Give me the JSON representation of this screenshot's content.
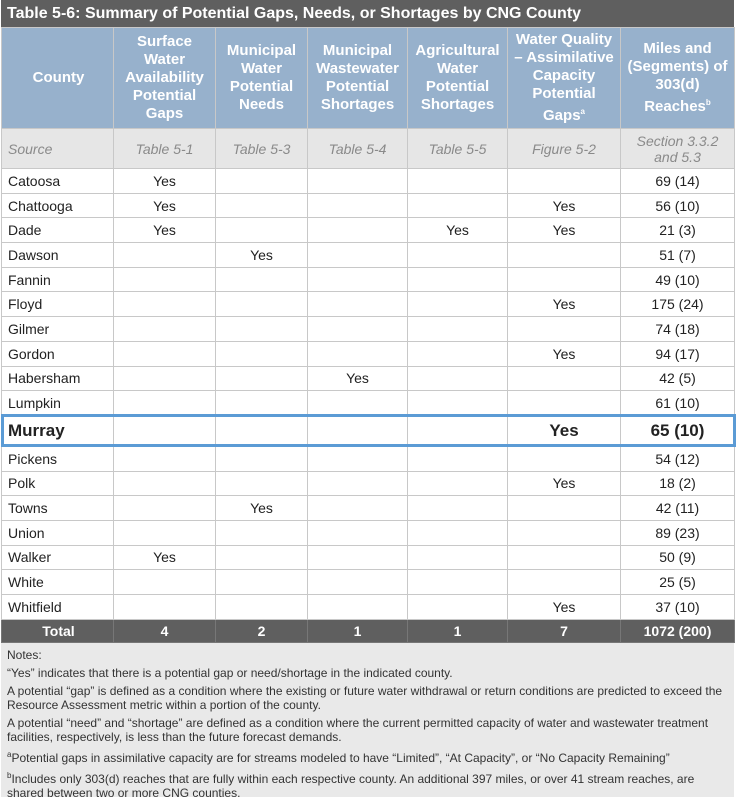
{
  "table": {
    "title": "Table 5-6:  Summary of Potential Gaps, Needs, or Shortages by CNG County",
    "columns": [
      {
        "key": "county",
        "text": "County"
      },
      {
        "key": "surface",
        "text": "Surface Water Availability Potential Gaps"
      },
      {
        "key": "municipal_water",
        "text": "Municipal Water Potential Needs"
      },
      {
        "key": "wastewater",
        "text": "Municipal Wastewater Potential Shortages"
      },
      {
        "key": "agricultural",
        "text": "Agricultural Water Potential Shortages"
      },
      {
        "key": "water_quality",
        "text": "Water Quality – Assimilative Capacity Potential Gaps",
        "sup": "a"
      },
      {
        "key": "miles",
        "text": "Miles and (Segments) of 303(d) Reaches",
        "sup": "b"
      }
    ],
    "source": {
      "county": "Source",
      "surface": "Table 5-1",
      "municipal_water": "Table 5-3",
      "wastewater": "Table 5-4",
      "agricultural": "Table 5-5",
      "water_quality": "Figure 5-2",
      "miles": "Section 3.3.2 and 5.3"
    },
    "rows": [
      {
        "county": "Catoosa",
        "surface": "Yes",
        "miles": "69 (14)"
      },
      {
        "county": "Chattooga",
        "surface": "Yes",
        "water_quality": "Yes",
        "miles": "56 (10)"
      },
      {
        "county": "Dade",
        "surface": "Yes",
        "agricultural": "Yes",
        "water_quality": "Yes",
        "miles": "21 (3)"
      },
      {
        "county": "Dawson",
        "municipal_water": "Yes",
        "miles": "51 (7)"
      },
      {
        "county": "Fannin",
        "miles": "49 (10)"
      },
      {
        "county": "Floyd",
        "water_quality": "Yes",
        "miles": "175 (24)"
      },
      {
        "county": "Gilmer",
        "miles": "74 (18)"
      },
      {
        "county": "Gordon",
        "water_quality": "Yes",
        "miles": "94 (17)"
      },
      {
        "county": "Habersham",
        "wastewater": "Yes",
        "miles": "42 (5)"
      },
      {
        "county": "Lumpkin",
        "miles": "61 (10)"
      },
      {
        "county": "Murray",
        "water_quality": "Yes",
        "miles": "65 (10)"
      },
      {
        "county": "Pickens",
        "miles": "54 (12)"
      },
      {
        "county": "Polk",
        "water_quality": "Yes",
        "miles": "18 (2)"
      },
      {
        "county": "Towns",
        "municipal_water": "Yes",
        "miles": "42 (11)"
      },
      {
        "county": "Union",
        "miles": "89 (23)"
      },
      {
        "county": "Walker",
        "surface": "Yes",
        "miles": "50 (9)"
      },
      {
        "county": "White",
        "miles": "25 (5)"
      },
      {
        "county": "Whitfield",
        "water_quality": "Yes",
        "miles": "37 (10)"
      }
    ],
    "highlight_row": 10,
    "total": {
      "county": "Total",
      "surface": "4",
      "municipal_water": "2",
      "wastewater": "1",
      "agricultural": "1",
      "water_quality": "7",
      "miles": "1072 (200)"
    },
    "notes": [
      {
        "text": "Notes:"
      },
      {
        "text": "“Yes” indicates that there is a potential gap or need/shortage in the indicated county."
      },
      {
        "text": "A potential “gap” is defined as a condition where the existing or future water withdrawal or return conditions are predicted to exceed the Resource Assessment metric within a portion of the county."
      },
      {
        "text": "A potential “need” and “shortage” are defined as a condition where the current permitted capacity of water and wastewater treatment facilities, respectively, is less than the future forecast demands."
      },
      {
        "sup": "a",
        "text": "Potential gaps in assimilative capacity are for streams modeled to have “Limited”, “At Capacity”, or “No Capacity Remaining”"
      },
      {
        "sup": "b",
        "text": "Includes only 303(d) reaches that are fully within each respective county. An additional 397 miles, or over 41 stream reaches, are shared between two or more CNG counties."
      }
    ]
  }
}
